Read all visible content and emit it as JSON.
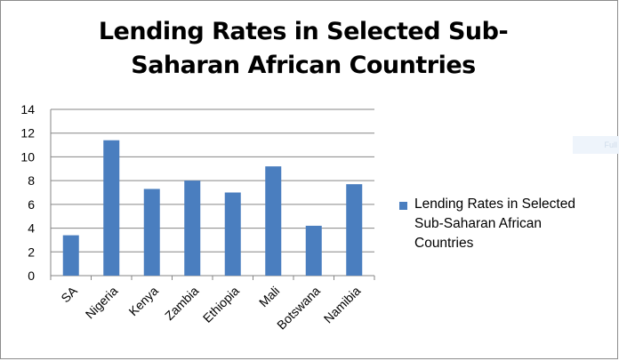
{
  "chart_data": {
    "type": "bar",
    "title": "Lending Rates in Selected Sub-Saharan African Countries",
    "categories": [
      "SA",
      "Nigeria",
      "Kenya",
      "Zambia",
      "Ethiopia",
      "Mali",
      "Botswana",
      "Namibia"
    ],
    "series": [
      {
        "name": "Lending Rates in Selected Sub-Saharan African Countries",
        "values": [
          3.4,
          11.4,
          7.3,
          8.0,
          7.0,
          9.2,
          4.2,
          7.7
        ],
        "color": "#4a7ebf"
      }
    ],
    "xlabel": "",
    "ylabel": "",
    "ylim": [
      0,
      14
    ],
    "yticks": [
      0,
      2,
      4,
      6,
      8,
      10,
      12,
      14
    ],
    "grid": true,
    "legend_position": "right"
  },
  "faint_tag": "Full"
}
